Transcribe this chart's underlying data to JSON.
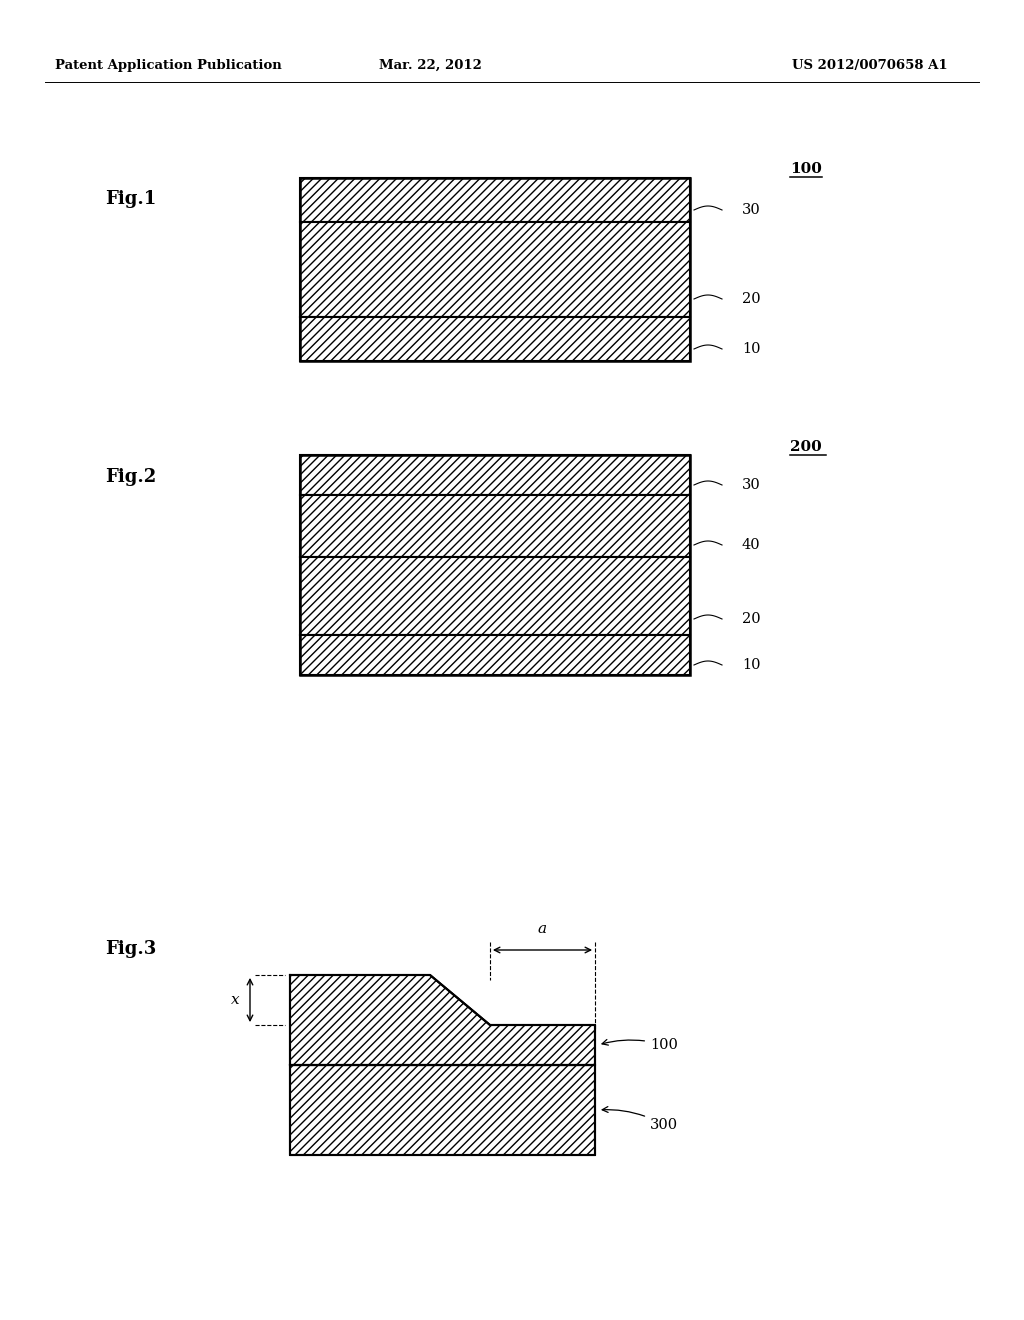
{
  "header_left": "Patent Application Publication",
  "header_mid": "Mar. 22, 2012",
  "header_right": "US 2012/0070658 A1",
  "fig1_label": "Fig.1",
  "fig1_ref": "100",
  "fig2_label": "Fig.2",
  "fig2_ref": "200",
  "fig3_label": "Fig.3",
  "fig3_100_label": "100",
  "fig3_300_label": "300",
  "fig3_a_label": "a",
  "fig3_x_label": "x",
  "layer_labels_fig1": [
    "30",
    "20",
    "10"
  ],
  "layer_labels_fig2": [
    "30",
    "40",
    "20",
    "10"
  ],
  "bg_color": "#ffffff",
  "line_color": "#000000"
}
